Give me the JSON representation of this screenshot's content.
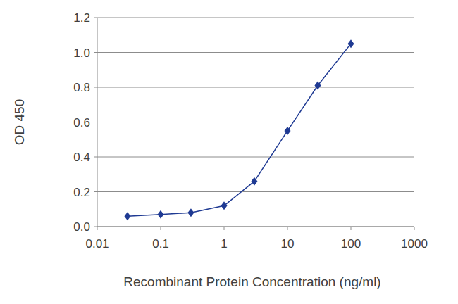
{
  "chart_data": {
    "type": "line",
    "x_label": "Recombinant Protein Concentration (ng/ml)",
    "y_label": "OD 450",
    "x": [
      0.03,
      0.1,
      0.3,
      1,
      3,
      10,
      30,
      100
    ],
    "values": [
      0.06,
      0.07,
      0.08,
      0.12,
      0.26,
      0.55,
      0.81,
      1.05
    ],
    "color": "#1f3a93",
    "marker": "diamond",
    "line_style": "solid",
    "log": "x",
    "grid": true,
    "xlim": [
      0.01,
      1000
    ],
    "xticks": [
      0.01,
      0.1,
      1,
      10,
      100,
      1000
    ],
    "ylim": [
      0,
      1.2
    ],
    "yticks": [
      {
        "value": 0,
        "label": "0.0"
      },
      0.2,
      0.4,
      0.6,
      0.8,
      {
        "value": 1,
        "label": "1.0"
      },
      1.2
    ]
  }
}
